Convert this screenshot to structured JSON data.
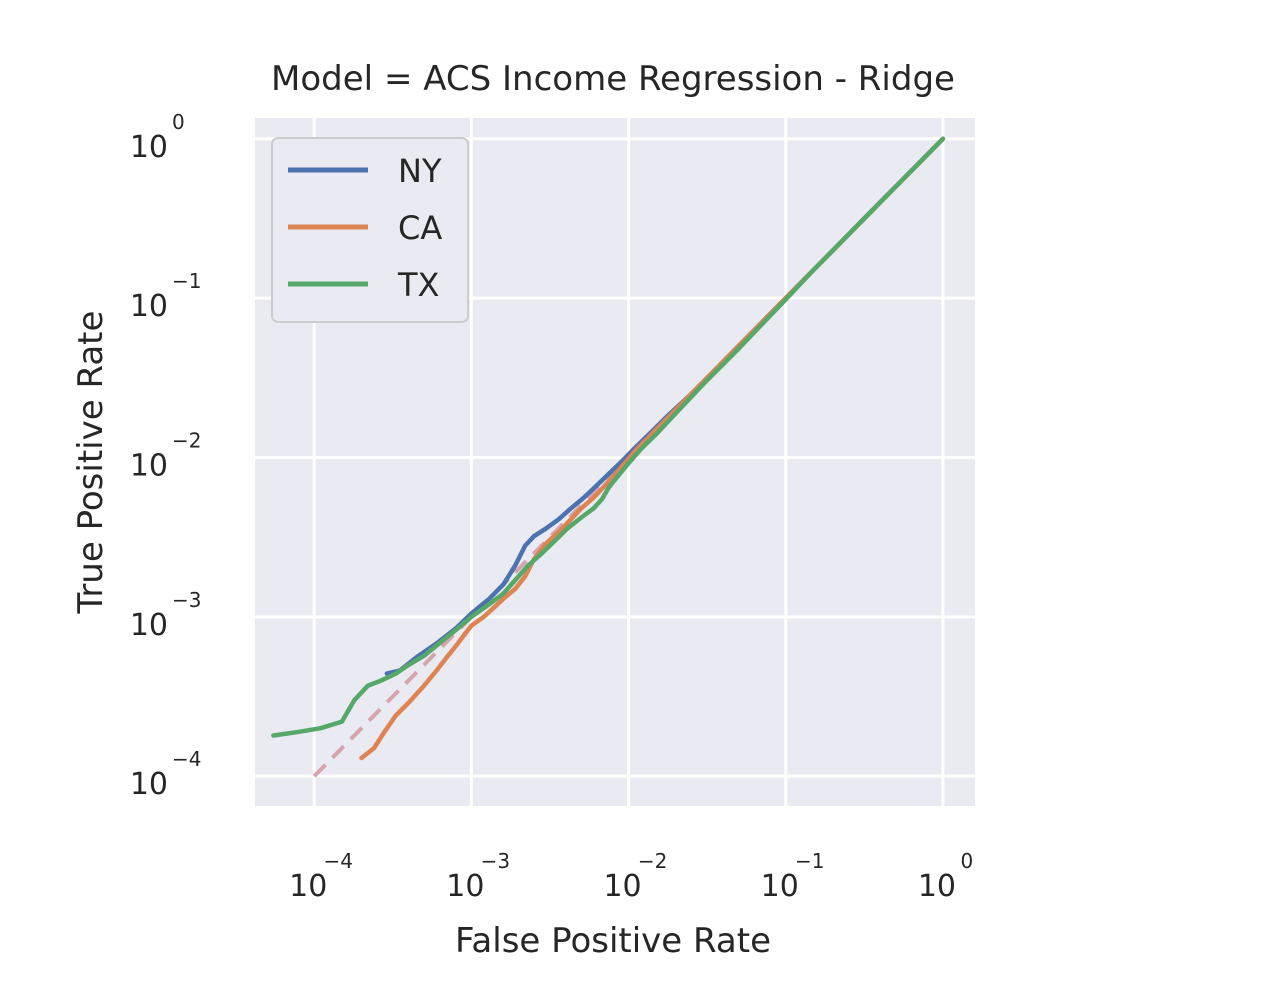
{
  "chart_data": {
    "type": "line",
    "title": "Model = ACS Income Regression - Ridge",
    "xlabel": "False Positive Rate",
    "ylabel": "True Positive Rate",
    "xscale": "log",
    "yscale": "log",
    "xlim": [
      4.2e-05,
      1.6
    ],
    "ylim": [
      6.5e-05,
      1.35
    ],
    "xticks": [
      {
        "base": "10",
        "exp": "−4",
        "value": 0.0001
      },
      {
        "base": "10",
        "exp": "−3",
        "value": 0.001
      },
      {
        "base": "10",
        "exp": "−2",
        "value": 0.01
      },
      {
        "base": "10",
        "exp": "−1",
        "value": 0.1
      },
      {
        "base": "10",
        "exp": "0",
        "value": 1
      }
    ],
    "yticks": [
      {
        "base": "10",
        "exp": "0",
        "value": 1
      },
      {
        "base": "10",
        "exp": "−1",
        "value": 0.1
      },
      {
        "base": "10",
        "exp": "−2",
        "value": 0.01
      },
      {
        "base": "10",
        "exp": "−3",
        "value": 0.001
      },
      {
        "base": "10",
        "exp": "−4",
        "value": 0.0001
      }
    ],
    "grid": true,
    "legend_position": "upper-left",
    "series": [
      {
        "name": "NY",
        "color": "#4c72b0",
        "x": [
          0.00029,
          0.00035,
          0.00045,
          0.0006,
          0.0008,
          0.001,
          0.0013,
          0.0016,
          0.0019,
          0.0022,
          0.0025,
          0.003,
          0.0036,
          0.0043,
          0.0052,
          0.0062,
          0.0075,
          0.009,
          0.011,
          0.014,
          0.018,
          0.025,
          0.035,
          0.05,
          0.07,
          0.1,
          0.15,
          0.22,
          0.33,
          0.5,
          0.7,
          1.0
        ],
        "y": [
          0.00044,
          0.00046,
          0.00056,
          0.00068,
          0.00085,
          0.00105,
          0.0013,
          0.0016,
          0.0021,
          0.0028,
          0.0032,
          0.0036,
          0.0041,
          0.0048,
          0.0056,
          0.0066,
          0.0079,
          0.0094,
          0.0115,
          0.0145,
          0.0185,
          0.025,
          0.035,
          0.05,
          0.07,
          0.1,
          0.15,
          0.22,
          0.33,
          0.5,
          0.7,
          1.0
        ]
      },
      {
        "name": "CA",
        "color": "#dd8452",
        "x": [
          0.0002,
          0.00024,
          0.00028,
          0.00033,
          0.0004,
          0.0005,
          0.0006,
          0.0007,
          0.0008,
          0.0009,
          0.001,
          0.0012,
          0.0014,
          0.0016,
          0.0019,
          0.0022,
          0.0025,
          0.003,
          0.0036,
          0.0043,
          0.005,
          0.006,
          0.0075,
          0.009,
          0.011,
          0.014,
          0.018,
          0.025,
          0.035,
          0.05,
          0.07,
          0.1,
          0.15,
          0.22,
          0.33,
          0.5,
          0.7,
          1.0
        ],
        "y": [
          0.00013,
          0.00015,
          0.00019,
          0.00024,
          0.00029,
          0.00037,
          0.00046,
          0.00056,
          0.00066,
          0.00077,
          0.00088,
          0.001,
          0.00115,
          0.0013,
          0.0015,
          0.0018,
          0.0023,
          0.0029,
          0.0034,
          0.0041,
          0.0048,
          0.0056,
          0.0071,
          0.0087,
          0.011,
          0.014,
          0.018,
          0.025,
          0.035,
          0.05,
          0.07,
          0.1,
          0.15,
          0.22,
          0.33,
          0.5,
          0.7,
          1.0
        ]
      },
      {
        "name": "TX",
        "color": "#55a868",
        "x": [
          5.5e-05,
          8e-05,
          0.00011,
          0.00015,
          0.00018,
          0.00022,
          0.00027,
          0.00033,
          0.0004,
          0.0005,
          0.0006,
          0.0008,
          0.001,
          0.0013,
          0.0016,
          0.0019,
          0.0023,
          0.0028,
          0.0034,
          0.0041,
          0.005,
          0.006,
          0.0068,
          0.0075,
          0.0085,
          0.01,
          0.012,
          0.015,
          0.02,
          0.03,
          0.05,
          0.07,
          0.1,
          0.15,
          0.22,
          0.33,
          0.5,
          0.7,
          1.0
        ],
        "y": [
          0.00018,
          0.00019,
          0.0002,
          0.00022,
          0.0003,
          0.00037,
          0.0004,
          0.00044,
          0.0005,
          0.00057,
          0.00066,
          0.00083,
          0.001,
          0.0012,
          0.0014,
          0.0017,
          0.0021,
          0.0025,
          0.003,
          0.0036,
          0.0042,
          0.0048,
          0.0055,
          0.0065,
          0.0076,
          0.0092,
          0.0113,
          0.014,
          0.019,
          0.029,
          0.048,
          0.068,
          0.098,
          0.15,
          0.22,
          0.33,
          0.5,
          0.7,
          1.0
        ]
      }
    ],
    "reference_line": {
      "x": [
        0.0001,
        1.0
      ],
      "y": [
        0.0001,
        1.0
      ],
      "color": "#d6a4ad",
      "style": "dashed"
    }
  }
}
